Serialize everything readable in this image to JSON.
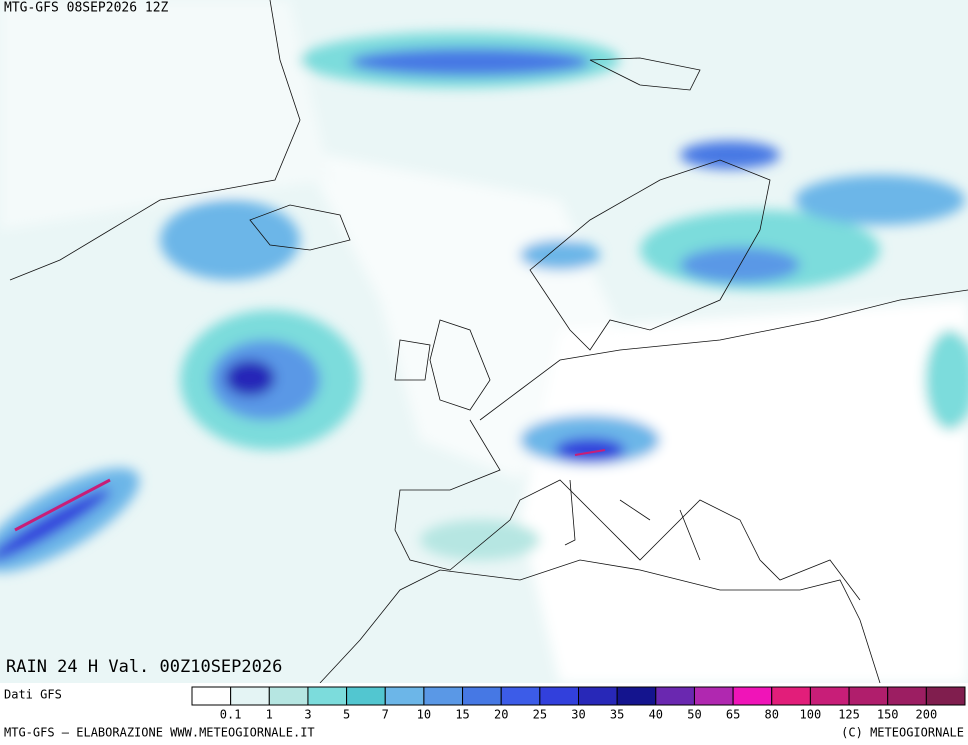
{
  "header": {
    "title": "MTG-GFS 08SEP2026 12Z"
  },
  "map": {
    "label": "RAIN 24 H Val. 00Z10SEP2026"
  },
  "legend": {
    "source": "Dati GFS",
    "colors": [
      "#ffffff",
      "#e4f4f4",
      "#b6e6e2",
      "#7cdcdc",
      "#52c6d0",
      "#6cb6e8",
      "#5a98e6",
      "#4678e4",
      "#3c5ce8",
      "#3240dc",
      "#2828b8",
      "#14148e",
      "#6a28b0",
      "#b028b0",
      "#f014b8",
      "#e21e7a",
      "#c81e78",
      "#b01e6c",
      "#9c1e62",
      "#801e4e"
    ],
    "levels": [
      0.1,
      1,
      3,
      5,
      7,
      10,
      15,
      20,
      25,
      30,
      35,
      40,
      50,
      65,
      80,
      100,
      125,
      150,
      200
    ]
  },
  "footer": {
    "left": "MTG-GFS — ELABORAZIONE WWW.METEOGIORNALE.IT",
    "right": "(C) METEOGIORNALE"
  }
}
